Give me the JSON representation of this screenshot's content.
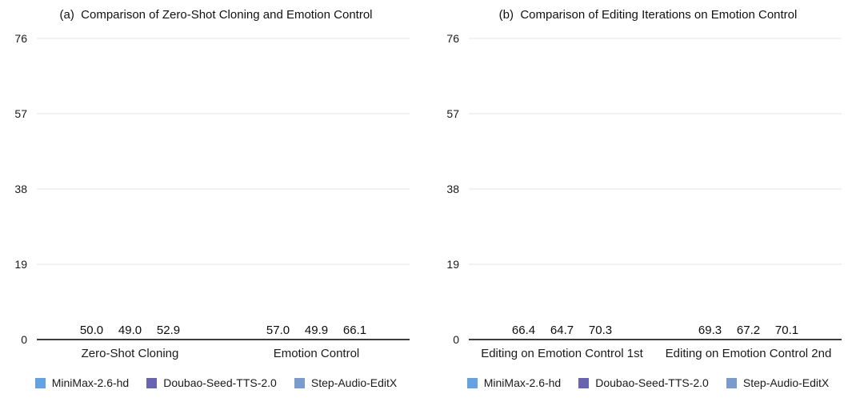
{
  "colors": {
    "series": [
      "#64a3e0",
      "#6a63af",
      "#7b9bcd"
    ],
    "axis": "#3d3d3d",
    "gridline": "#e6e6e6",
    "text": "#141414"
  },
  "legend": [
    "MiniMax-2.6-hd",
    "Doubao-Seed-TTS-2.0",
    "Step-Audio-EditX"
  ],
  "chart_data": [
    {
      "type": "bar",
      "title": "(a)  Comparison of Zero-Shot Cloning and Emotion Control",
      "categories": [
        "Zero-Shot Cloning",
        "Emotion Control"
      ],
      "series": [
        {
          "name": "MiniMax-2.6-hd",
          "values": [
            50.0,
            57.0
          ]
        },
        {
          "name": "Doubao-Seed-TTS-2.0",
          "values": [
            49.0,
            49.9
          ]
        },
        {
          "name": "Step-Audio-EditX",
          "values": [
            52.9,
            66.1
          ]
        }
      ],
      "ylim": [
        0,
        76
      ],
      "y_ticks": [
        0,
        19,
        38,
        57,
        76
      ],
      "grid": true,
      "legend_position": "bottom",
      "value_labels_decimals": 1
    },
    {
      "type": "bar",
      "title": "(b)  Comparison of Editing Iterations on Emotion Control",
      "categories": [
        "Editing on Emotion Control 1st",
        "Editing on Emotion Control 2nd"
      ],
      "series": [
        {
          "name": "MiniMax-2.6-hd",
          "values": [
            66.4,
            69.3
          ]
        },
        {
          "name": "Doubao-Seed-TTS-2.0",
          "values": [
            64.7,
            67.2
          ]
        },
        {
          "name": "Step-Audio-EditX",
          "values": [
            70.3,
            70.1
          ]
        }
      ],
      "ylim": [
        0,
        76
      ],
      "y_ticks": [
        0,
        19,
        38,
        57,
        76
      ],
      "grid": true,
      "legend_position": "bottom",
      "value_labels_decimals": 1
    }
  ]
}
